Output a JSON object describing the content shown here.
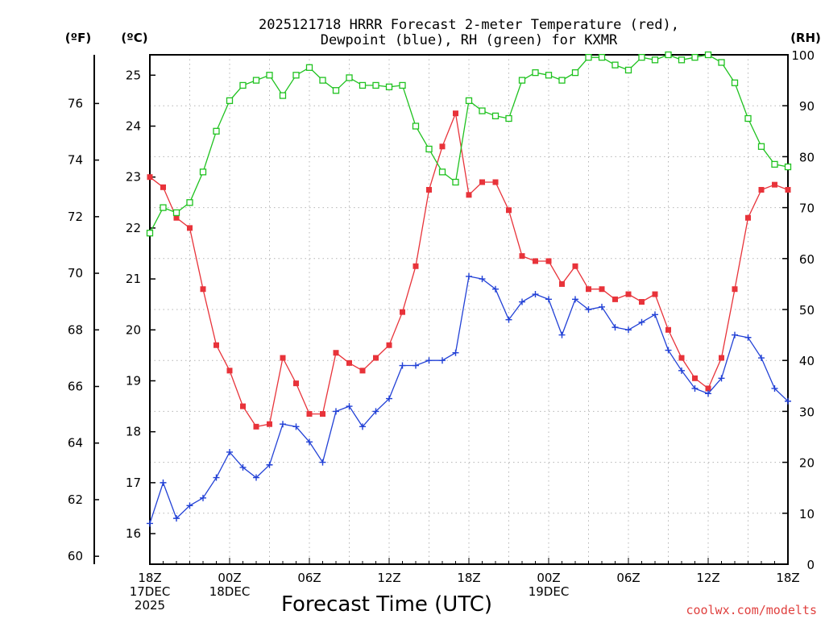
{
  "chart_data": {
    "type": "line",
    "title_lines": [
      "2025121718 HRRR Forecast 2-meter Temperature (red),",
      "Dewpoint (blue), RH (green) for KXMR"
    ],
    "xlabel": "Forecast Time (UTC)",
    "credit": "coolwx.com/modelts",
    "axes": {
      "fahrenheit": {
        "label": "(ºF)",
        "ticks": [
          60,
          62,
          64,
          66,
          68,
          70,
          72,
          74,
          76
        ]
      },
      "celsius": {
        "label": "(ºC)",
        "ticks": [
          16,
          17,
          18,
          19,
          20,
          21,
          22,
          23,
          24,
          25
        ],
        "ylim": [
          15.4,
          25.4
        ]
      },
      "rh": {
        "label": "(RH)",
        "ticks": [
          0,
          10,
          20,
          30,
          40,
          50,
          60,
          70,
          80,
          90,
          100
        ],
        "ylim": [
          0,
          100
        ]
      }
    },
    "x": {
      "range_hours": [
        0,
        48
      ],
      "unit": "forecast hour"
    },
    "x_ticks": [
      {
        "hour": 0,
        "lines": [
          "18Z",
          "17DEC",
          "2025"
        ]
      },
      {
        "hour": 6,
        "lines": [
          "00Z",
          "18DEC"
        ]
      },
      {
        "hour": 12,
        "lines": [
          "06Z"
        ]
      },
      {
        "hour": 18,
        "lines": [
          "12Z"
        ]
      },
      {
        "hour": 24,
        "lines": [
          "18Z"
        ]
      },
      {
        "hour": 30,
        "lines": [
          "00Z",
          "19DEC"
        ]
      },
      {
        "hour": 36,
        "lines": [
          "06Z"
        ]
      },
      {
        "hour": 42,
        "lines": [
          "12Z"
        ]
      },
      {
        "hour": 48,
        "lines": [
          "18Z"
        ]
      }
    ],
    "series": [
      {
        "name": "Temperature",
        "units": "C",
        "color": "#e8333a",
        "marker": "filled-square",
        "values": [
          23.0,
          22.8,
          22.2,
          22.0,
          20.8,
          19.7,
          19.2,
          18.5,
          18.1,
          18.15,
          19.45,
          18.95,
          18.35,
          18.35,
          19.55,
          19.35,
          19.2,
          19.45,
          19.7,
          20.35,
          21.25,
          22.75,
          23.6,
          24.25,
          22.65,
          22.9,
          22.9,
          22.35,
          21.45,
          21.35,
          21.35,
          20.9,
          21.25,
          20.8,
          20.8,
          20.6,
          20.7,
          20.55,
          20.7,
          20.0,
          19.45,
          19.05,
          18.85,
          19.45,
          20.8,
          22.2,
          22.75,
          22.85,
          22.75
        ]
      },
      {
        "name": "Dewpoint",
        "units": "C",
        "color": "#2241d6",
        "marker": "plus",
        "values": [
          16.2,
          17.0,
          16.3,
          16.55,
          16.7,
          17.1,
          17.6,
          17.3,
          17.1,
          17.35,
          18.15,
          18.1,
          17.8,
          17.4,
          18.4,
          18.5,
          18.1,
          18.4,
          18.65,
          19.3,
          19.3,
          19.4,
          19.4,
          19.55,
          21.05,
          21.0,
          20.8,
          20.2,
          20.55,
          20.7,
          20.6,
          19.9,
          20.6,
          20.4,
          20.45,
          20.05,
          20.0,
          20.15,
          20.3,
          19.6,
          19.2,
          18.85,
          18.75,
          19.05,
          19.9,
          19.85,
          19.45,
          18.85,
          18.6
        ]
      },
      {
        "name": "RH",
        "units": "%",
        "color": "#1fc21f",
        "marker": "open-square",
        "values": [
          65.0,
          70.0,
          69.0,
          71.0,
          77.0,
          85.0,
          91.0,
          94.0,
          95.0,
          96.0,
          92.0,
          96.0,
          97.5,
          95.0,
          93.0,
          95.5,
          94.0,
          94.0,
          93.7,
          94.0,
          86.0,
          81.5,
          77.0,
          75.0,
          91.0,
          89.0,
          88.0,
          87.5,
          95.0,
          96.5,
          96.0,
          95.0,
          96.5,
          99.5,
          99.5,
          98.0,
          97.0,
          99.5,
          99.0,
          100.0,
          99.0,
          99.5,
          100.0,
          98.5,
          94.5,
          87.5,
          82.0,
          78.5,
          78.0
        ]
      }
    ]
  }
}
